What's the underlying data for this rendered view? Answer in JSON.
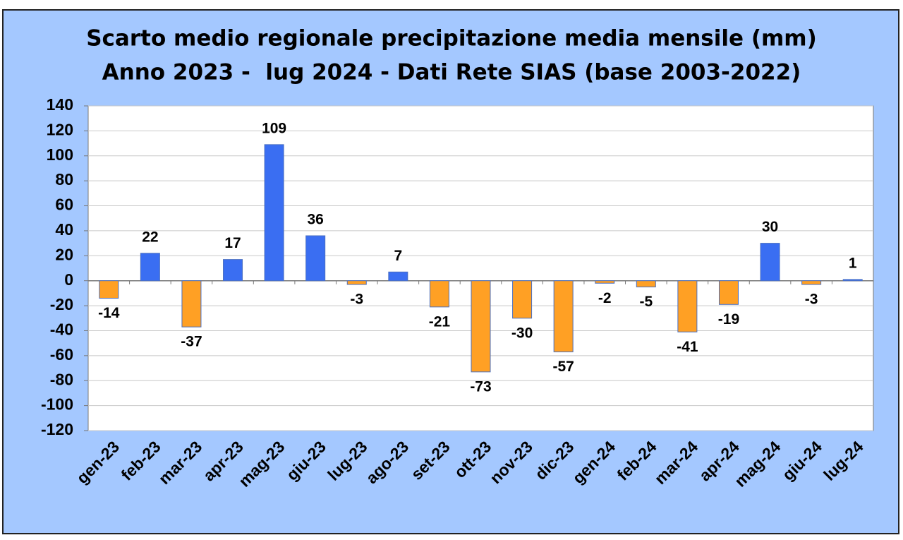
{
  "chart_data": {
    "type": "bar",
    "title": "Scarto medio regionale precipitazione media mensile (mm)",
    "subtitle": "Anno 2023 -  lug 2024 - Dati Rete SIAS (base 2003-2022)",
    "categories": [
      "gen-23",
      "feb-23",
      "mar-23",
      "apr-23",
      "mag-23",
      "giu-23",
      "lug-23",
      "ago-23",
      "set-23",
      "ott-23",
      "nov-23",
      "dic-23",
      "gen-24",
      "feb-24",
      "mar-24",
      "apr-24",
      "mag-24",
      "giu-24",
      "lug-24"
    ],
    "values": [
      -14,
      22,
      -37,
      17,
      109,
      36,
      -3,
      7,
      -21,
      -73,
      -30,
      -57,
      -2,
      -5,
      -41,
      -19,
      30,
      -3,
      1
    ],
    "colors": {
      "positive": "#3a6ef2",
      "negative": "#ffa024"
    },
    "ylim": [
      -120,
      140
    ],
    "yticks": [
      -120,
      -100,
      -80,
      -60,
      -40,
      -20,
      0,
      20,
      40,
      60,
      80,
      100,
      120,
      140
    ],
    "grid": true
  }
}
